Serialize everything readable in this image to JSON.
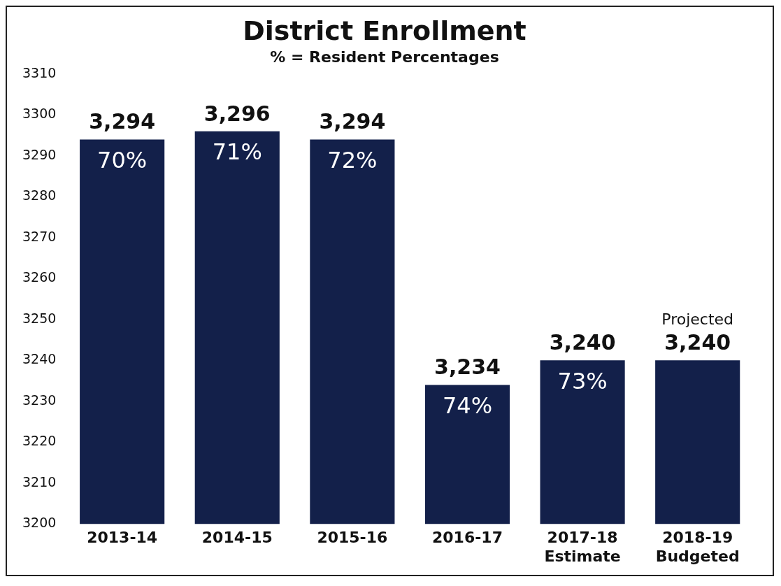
{
  "chart_data": {
    "type": "bar",
    "title": "District Enrollment",
    "subtitle": "% = Resident Percentages",
    "categories": [
      "2013-14",
      "2014-15",
      "2015-16",
      "2016-17",
      "2017-18\nEstimate",
      "2018-19\nBudgeted"
    ],
    "values": [
      3294,
      3296,
      3294,
      3234,
      3240,
      3240
    ],
    "color": "#13204a",
    "value_labels": [
      "3,294",
      "3,296",
      "3,294",
      "3,234",
      "3,240",
      "3,240"
    ],
    "ylim": [
      3200,
      3310
    ],
    "yticks": [
      3200,
      3210,
      3220,
      3230,
      3240,
      3250,
      3260,
      3270,
      3280,
      3290,
      3300,
      3310
    ],
    "grid": false,
    "legend": false,
    "annotations": [
      {
        "text": "70%",
        "x": "2013-14",
        "y": 3294
      },
      {
        "text": "71%",
        "x": "2014-15",
        "y": 3296
      },
      {
        "text": "72%",
        "x": "2015-16",
        "y": 3294
      },
      {
        "text": "74%",
        "x": "2016-17",
        "y": 3234
      },
      {
        "text": "73%",
        "x": "2017-18\nEstimate",
        "y": 3240
      },
      "Projected"
    ]
  }
}
